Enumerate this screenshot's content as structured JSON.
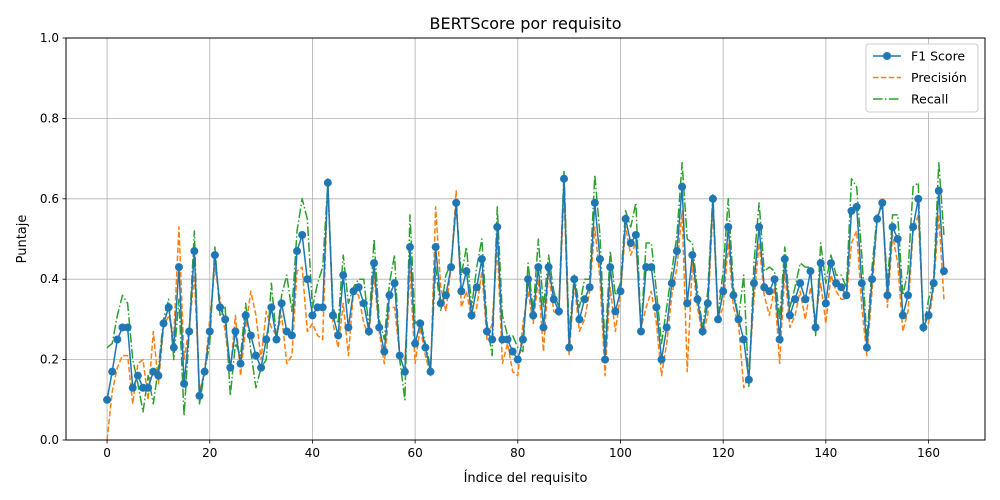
{
  "chart_data": {
    "type": "line",
    "title": "BERTScore por requisito",
    "xlabel": "Índice del requisito",
    "ylabel": "Puntaje",
    "xlim": [
      -8,
      171
    ],
    "ylim": [
      0,
      1
    ],
    "x_ticks": [
      0,
      20,
      40,
      60,
      80,
      100,
      120,
      140,
      160
    ],
    "y_ticks": [
      0.0,
      0.2,
      0.4,
      0.6,
      0.8,
      1.0
    ],
    "x_tick_labels": [
      "0",
      "20",
      "40",
      "60",
      "80",
      "100",
      "120",
      "140",
      "160"
    ],
    "y_tick_labels": [
      "0.0",
      "0.2",
      "0.4",
      "0.6",
      "0.8",
      "1.0"
    ],
    "grid": true,
    "legend_position": "top-right",
    "series": [
      {
        "name": "F1 Score",
        "color": "#1f77b4",
        "style": "solid-markers",
        "values": [
          0.1,
          0.17,
          0.25,
          0.28,
          0.28,
          0.13,
          0.16,
          0.13,
          0.13,
          0.17,
          0.16,
          0.29,
          0.33,
          0.23,
          0.43,
          0.14,
          0.27,
          0.47,
          0.11,
          0.17,
          0.27,
          0.46,
          0.33,
          0.3,
          0.18,
          0.27,
          0.19,
          0.31,
          0.26,
          0.21,
          0.18,
          0.25,
          0.33,
          0.25,
          0.34,
          0.27,
          0.26,
          0.47,
          0.51,
          0.4,
          0.31,
          0.33,
          0.33,
          0.64,
          0.31,
          0.26,
          0.41,
          0.28,
          0.37,
          0.38,
          0.34,
          0.27,
          0.44,
          0.28,
          0.22,
          0.36,
          0.39,
          0.21,
          0.17,
          0.48,
          0.24,
          0.29,
          0.23,
          0.17,
          0.48,
          0.34,
          0.36,
          0.43,
          0.59,
          0.37,
          0.42,
          0.31,
          0.38,
          0.45,
          0.27,
          0.25,
          0.53,
          0.25,
          0.25,
          0.22,
          0.2,
          0.25,
          0.4,
          0.31,
          0.43,
          0.28,
          0.43,
          0.35,
          0.32,
          0.65,
          0.23,
          0.4,
          0.3,
          0.35,
          0.38,
          0.59,
          0.45,
          0.2,
          0.43,
          0.32,
          0.37,
          0.55,
          0.49,
          0.51,
          0.27,
          0.43,
          0.43,
          0.33,
          0.2,
          0.28,
          0.39,
          0.47,
          0.63,
          0.34,
          0.46,
          0.35,
          0.27,
          0.34,
          0.6,
          0.3,
          0.37,
          0.53,
          0.36,
          0.3,
          0.25,
          0.15,
          0.39,
          0.53,
          0.38,
          0.37,
          0.4,
          0.25,
          0.45,
          0.31,
          0.35,
          0.39,
          0.35,
          0.42,
          0.28,
          0.44,
          0.34,
          0.44,
          0.39,
          0.38,
          0.36,
          0.57,
          0.58,
          0.39,
          0.23,
          0.4,
          0.55,
          0.59,
          0.36,
          0.53,
          0.5,
          0.31,
          0.36,
          0.53,
          0.6,
          0.28,
          0.31,
          0.39,
          0.62,
          0.42
        ]
      },
      {
        "name": "Precisión",
        "color": "#ff7f0e",
        "style": "dashed",
        "values": [
          0.0,
          0.12,
          0.18,
          0.21,
          0.21,
          0.09,
          0.19,
          0.2,
          0.1,
          0.27,
          0.14,
          0.28,
          0.31,
          0.26,
          0.53,
          0.2,
          0.28,
          0.41,
          0.12,
          0.17,
          0.3,
          0.43,
          0.35,
          0.27,
          0.17,
          0.31,
          0.16,
          0.28,
          0.37,
          0.31,
          0.2,
          0.32,
          0.28,
          0.26,
          0.31,
          0.19,
          0.21,
          0.42,
          0.43,
          0.27,
          0.29,
          0.26,
          0.25,
          0.65,
          0.29,
          0.23,
          0.34,
          0.21,
          0.37,
          0.36,
          0.29,
          0.26,
          0.41,
          0.27,
          0.19,
          0.33,
          0.33,
          0.21,
          0.2,
          0.42,
          0.19,
          0.28,
          0.21,
          0.16,
          0.58,
          0.38,
          0.32,
          0.43,
          0.62,
          0.33,
          0.37,
          0.3,
          0.33,
          0.42,
          0.25,
          0.29,
          0.48,
          0.19,
          0.24,
          0.17,
          0.16,
          0.29,
          0.37,
          0.29,
          0.4,
          0.22,
          0.42,
          0.32,
          0.31,
          0.62,
          0.21,
          0.39,
          0.27,
          0.3,
          0.37,
          0.53,
          0.4,
          0.16,
          0.38,
          0.27,
          0.36,
          0.53,
          0.46,
          0.49,
          0.28,
          0.33,
          0.37,
          0.29,
          0.16,
          0.24,
          0.36,
          0.43,
          0.57,
          0.17,
          0.44,
          0.33,
          0.26,
          0.31,
          0.58,
          0.3,
          0.33,
          0.49,
          0.33,
          0.29,
          0.13,
          0.16,
          0.35,
          0.49,
          0.36,
          0.31,
          0.38,
          0.19,
          0.42,
          0.28,
          0.31,
          0.37,
          0.3,
          0.38,
          0.3,
          0.39,
          0.29,
          0.41,
          0.37,
          0.35,
          0.35,
          0.49,
          0.52,
          0.33,
          0.21,
          0.37,
          0.55,
          0.6,
          0.33,
          0.51,
          0.44,
          0.27,
          0.32,
          0.52,
          0.56,
          0.29,
          0.29,
          0.38,
          0.56,
          0.35
        ]
      },
      {
        "name": "Recall",
        "color": "#2ca02c",
        "style": "dashdot",
        "values": [
          0.23,
          0.24,
          0.31,
          0.36,
          0.34,
          0.2,
          0.14,
          0.07,
          0.16,
          0.09,
          0.18,
          0.3,
          0.35,
          0.2,
          0.35,
          0.06,
          0.27,
          0.52,
          0.09,
          0.17,
          0.24,
          0.48,
          0.31,
          0.33,
          0.11,
          0.24,
          0.21,
          0.34,
          0.22,
          0.13,
          0.18,
          0.2,
          0.39,
          0.25,
          0.36,
          0.41,
          0.32,
          0.52,
          0.6,
          0.55,
          0.33,
          0.39,
          0.43,
          0.64,
          0.33,
          0.29,
          0.46,
          0.34,
          0.38,
          0.4,
          0.4,
          0.28,
          0.5,
          0.3,
          0.25,
          0.39,
          0.46,
          0.2,
          0.1,
          0.56,
          0.29,
          0.3,
          0.24,
          0.18,
          0.43,
          0.32,
          0.41,
          0.44,
          0.58,
          0.41,
          0.48,
          0.33,
          0.43,
          0.5,
          0.29,
          0.21,
          0.58,
          0.31,
          0.26,
          0.26,
          0.23,
          0.22,
          0.44,
          0.32,
          0.5,
          0.33,
          0.46,
          0.37,
          0.33,
          0.67,
          0.26,
          0.41,
          0.33,
          0.4,
          0.4,
          0.66,
          0.51,
          0.23,
          0.47,
          0.36,
          0.39,
          0.57,
          0.53,
          0.59,
          0.27,
          0.49,
          0.49,
          0.37,
          0.24,
          0.33,
          0.42,
          0.51,
          0.69,
          0.5,
          0.49,
          0.37,
          0.28,
          0.37,
          0.61,
          0.31,
          0.42,
          0.6,
          0.38,
          0.3,
          0.41,
          0.13,
          0.44,
          0.59,
          0.42,
          0.43,
          0.42,
          0.3,
          0.48,
          0.33,
          0.38,
          0.44,
          0.43,
          0.43,
          0.26,
          0.49,
          0.39,
          0.46,
          0.41,
          0.41,
          0.38,
          0.65,
          0.63,
          0.46,
          0.25,
          0.43,
          0.56,
          0.58,
          0.39,
          0.56,
          0.56,
          0.36,
          0.42,
          0.63,
          0.64,
          0.27,
          0.35,
          0.4,
          0.69,
          0.51
        ]
      }
    ]
  }
}
